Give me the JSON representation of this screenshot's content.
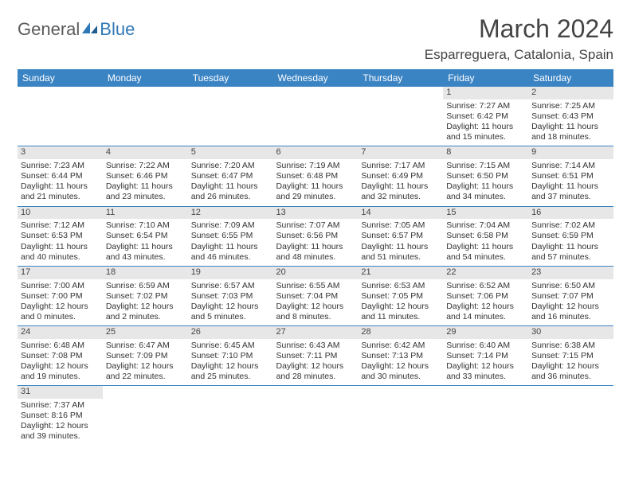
{
  "brand": {
    "dark": "General",
    "blue": "Blue"
  },
  "title": "March 2024",
  "location": "Esparreguera, Catalonia, Spain",
  "colors": {
    "header_bg": "#3b84c4",
    "header_fg": "#ffffff",
    "daynum_bg": "#e7e7e7",
    "rule": "#3b84c4",
    "logo_dark": "#5a5a5a",
    "logo_blue": "#2f78b7"
  },
  "day_headers": [
    "Sunday",
    "Monday",
    "Tuesday",
    "Wednesday",
    "Thursday",
    "Friday",
    "Saturday"
  ],
  "weeks": [
    [
      null,
      null,
      null,
      null,
      null,
      {
        "n": "1",
        "sunrise": "7:27 AM",
        "sunset": "6:42 PM",
        "day_h": "11",
        "day_m": "15"
      },
      {
        "n": "2",
        "sunrise": "7:25 AM",
        "sunset": "6:43 PM",
        "day_h": "11",
        "day_m": "18"
      }
    ],
    [
      {
        "n": "3",
        "sunrise": "7:23 AM",
        "sunset": "6:44 PM",
        "day_h": "11",
        "day_m": "21"
      },
      {
        "n": "4",
        "sunrise": "7:22 AM",
        "sunset": "6:46 PM",
        "day_h": "11",
        "day_m": "23"
      },
      {
        "n": "5",
        "sunrise": "7:20 AM",
        "sunset": "6:47 PM",
        "day_h": "11",
        "day_m": "26"
      },
      {
        "n": "6",
        "sunrise": "7:19 AM",
        "sunset": "6:48 PM",
        "day_h": "11",
        "day_m": "29"
      },
      {
        "n": "7",
        "sunrise": "7:17 AM",
        "sunset": "6:49 PM",
        "day_h": "11",
        "day_m": "32"
      },
      {
        "n": "8",
        "sunrise": "7:15 AM",
        "sunset": "6:50 PM",
        "day_h": "11",
        "day_m": "34"
      },
      {
        "n": "9",
        "sunrise": "7:14 AM",
        "sunset": "6:51 PM",
        "day_h": "11",
        "day_m": "37"
      }
    ],
    [
      {
        "n": "10",
        "sunrise": "7:12 AM",
        "sunset": "6:53 PM",
        "day_h": "11",
        "day_m": "40"
      },
      {
        "n": "11",
        "sunrise": "7:10 AM",
        "sunset": "6:54 PM",
        "day_h": "11",
        "day_m": "43"
      },
      {
        "n": "12",
        "sunrise": "7:09 AM",
        "sunset": "6:55 PM",
        "day_h": "11",
        "day_m": "46"
      },
      {
        "n": "13",
        "sunrise": "7:07 AM",
        "sunset": "6:56 PM",
        "day_h": "11",
        "day_m": "48"
      },
      {
        "n": "14",
        "sunrise": "7:05 AM",
        "sunset": "6:57 PM",
        "day_h": "11",
        "day_m": "51"
      },
      {
        "n": "15",
        "sunrise": "7:04 AM",
        "sunset": "6:58 PM",
        "day_h": "11",
        "day_m": "54"
      },
      {
        "n": "16",
        "sunrise": "7:02 AM",
        "sunset": "6:59 PM",
        "day_h": "11",
        "day_m": "57"
      }
    ],
    [
      {
        "n": "17",
        "sunrise": "7:00 AM",
        "sunset": "7:00 PM",
        "day_h": "12",
        "day_m": "0"
      },
      {
        "n": "18",
        "sunrise": "6:59 AM",
        "sunset": "7:02 PM",
        "day_h": "12",
        "day_m": "2"
      },
      {
        "n": "19",
        "sunrise": "6:57 AM",
        "sunset": "7:03 PM",
        "day_h": "12",
        "day_m": "5"
      },
      {
        "n": "20",
        "sunrise": "6:55 AM",
        "sunset": "7:04 PM",
        "day_h": "12",
        "day_m": "8"
      },
      {
        "n": "21",
        "sunrise": "6:53 AM",
        "sunset": "7:05 PM",
        "day_h": "12",
        "day_m": "11"
      },
      {
        "n": "22",
        "sunrise": "6:52 AM",
        "sunset": "7:06 PM",
        "day_h": "12",
        "day_m": "14"
      },
      {
        "n": "23",
        "sunrise": "6:50 AM",
        "sunset": "7:07 PM",
        "day_h": "12",
        "day_m": "16"
      }
    ],
    [
      {
        "n": "24",
        "sunrise": "6:48 AM",
        "sunset": "7:08 PM",
        "day_h": "12",
        "day_m": "19"
      },
      {
        "n": "25",
        "sunrise": "6:47 AM",
        "sunset": "7:09 PM",
        "day_h": "12",
        "day_m": "22"
      },
      {
        "n": "26",
        "sunrise": "6:45 AM",
        "sunset": "7:10 PM",
        "day_h": "12",
        "day_m": "25"
      },
      {
        "n": "27",
        "sunrise": "6:43 AM",
        "sunset": "7:11 PM",
        "day_h": "12",
        "day_m": "28"
      },
      {
        "n": "28",
        "sunrise": "6:42 AM",
        "sunset": "7:13 PM",
        "day_h": "12",
        "day_m": "30"
      },
      {
        "n": "29",
        "sunrise": "6:40 AM",
        "sunset": "7:14 PM",
        "day_h": "12",
        "day_m": "33"
      },
      {
        "n": "30",
        "sunrise": "6:38 AM",
        "sunset": "7:15 PM",
        "day_h": "12",
        "day_m": "36"
      }
    ],
    [
      {
        "n": "31",
        "sunrise": "7:37 AM",
        "sunset": "8:16 PM",
        "day_h": "12",
        "day_m": "39"
      },
      null,
      null,
      null,
      null,
      null,
      null
    ]
  ],
  "labels": {
    "sunrise": "Sunrise:",
    "sunset": "Sunset:",
    "daylight_prefix": "Daylight:",
    "hours_word": "hours",
    "and_word": "and",
    "minutes_word": "minutes."
  }
}
